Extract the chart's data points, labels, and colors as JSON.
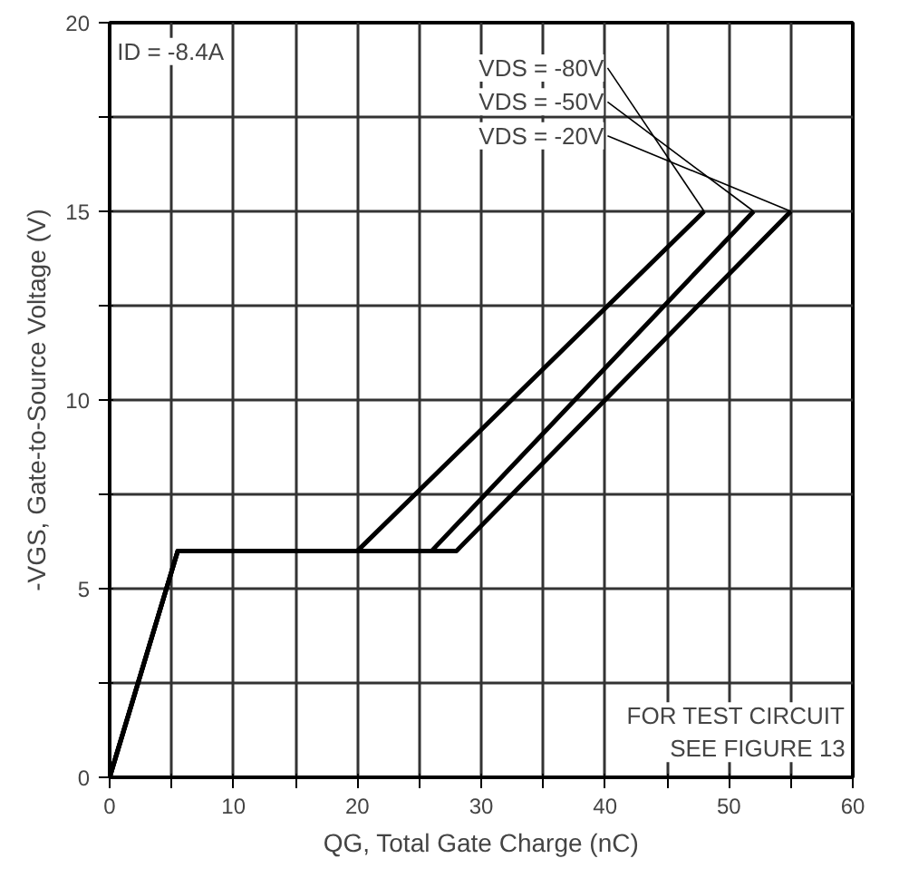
{
  "chart_data": {
    "type": "line",
    "xlabel": "QG, Total Gate Charge (nC)",
    "ylabel": "-VGS, Gate-to-Source Voltage (V)",
    "xlim": [
      0,
      60
    ],
    "ylim": [
      0,
      20
    ],
    "xticks": [
      0,
      {
        "value": 5,
        "label": null
      },
      10,
      {
        "value": 15,
        "label": null
      },
      20,
      {
        "value": 25,
        "label": null
      },
      30,
      {
        "value": 35,
        "label": null
      },
      40,
      {
        "value": 45,
        "label": null
      },
      50,
      {
        "value": 55,
        "label": null
      },
      60
    ],
    "yticks": [
      0,
      {
        "value": 2.5,
        "label": null
      },
      5,
      {
        "value": 7.5,
        "label": null
      },
      10,
      {
        "value": 12.5,
        "label": null
      },
      15,
      {
        "value": 17.5,
        "label": null
      },
      20
    ],
    "series": [
      {
        "name": "VDS = -80V",
        "color": "#000000",
        "x": [
          0,
          5.5,
          20,
          48
        ],
        "values": [
          0,
          6,
          6,
          15
        ]
      },
      {
        "name": "VDS = -50V",
        "color": "#000000",
        "x": [
          0,
          5.5,
          26,
          52
        ],
        "values": [
          0,
          6,
          6,
          15
        ]
      },
      {
        "name": "VDS = -20V",
        "color": "#000000",
        "x": [
          0,
          5.5,
          28,
          55
        ],
        "values": [
          0,
          6,
          6,
          15
        ]
      }
    ],
    "annotations": [
      "ID = -8.4A",
      "FOR TEST CIRCUIT\nSEE FIGURE 13"
    ],
    "grid": true,
    "legend": false,
    "line_style": "solid",
    "marker": "none"
  }
}
